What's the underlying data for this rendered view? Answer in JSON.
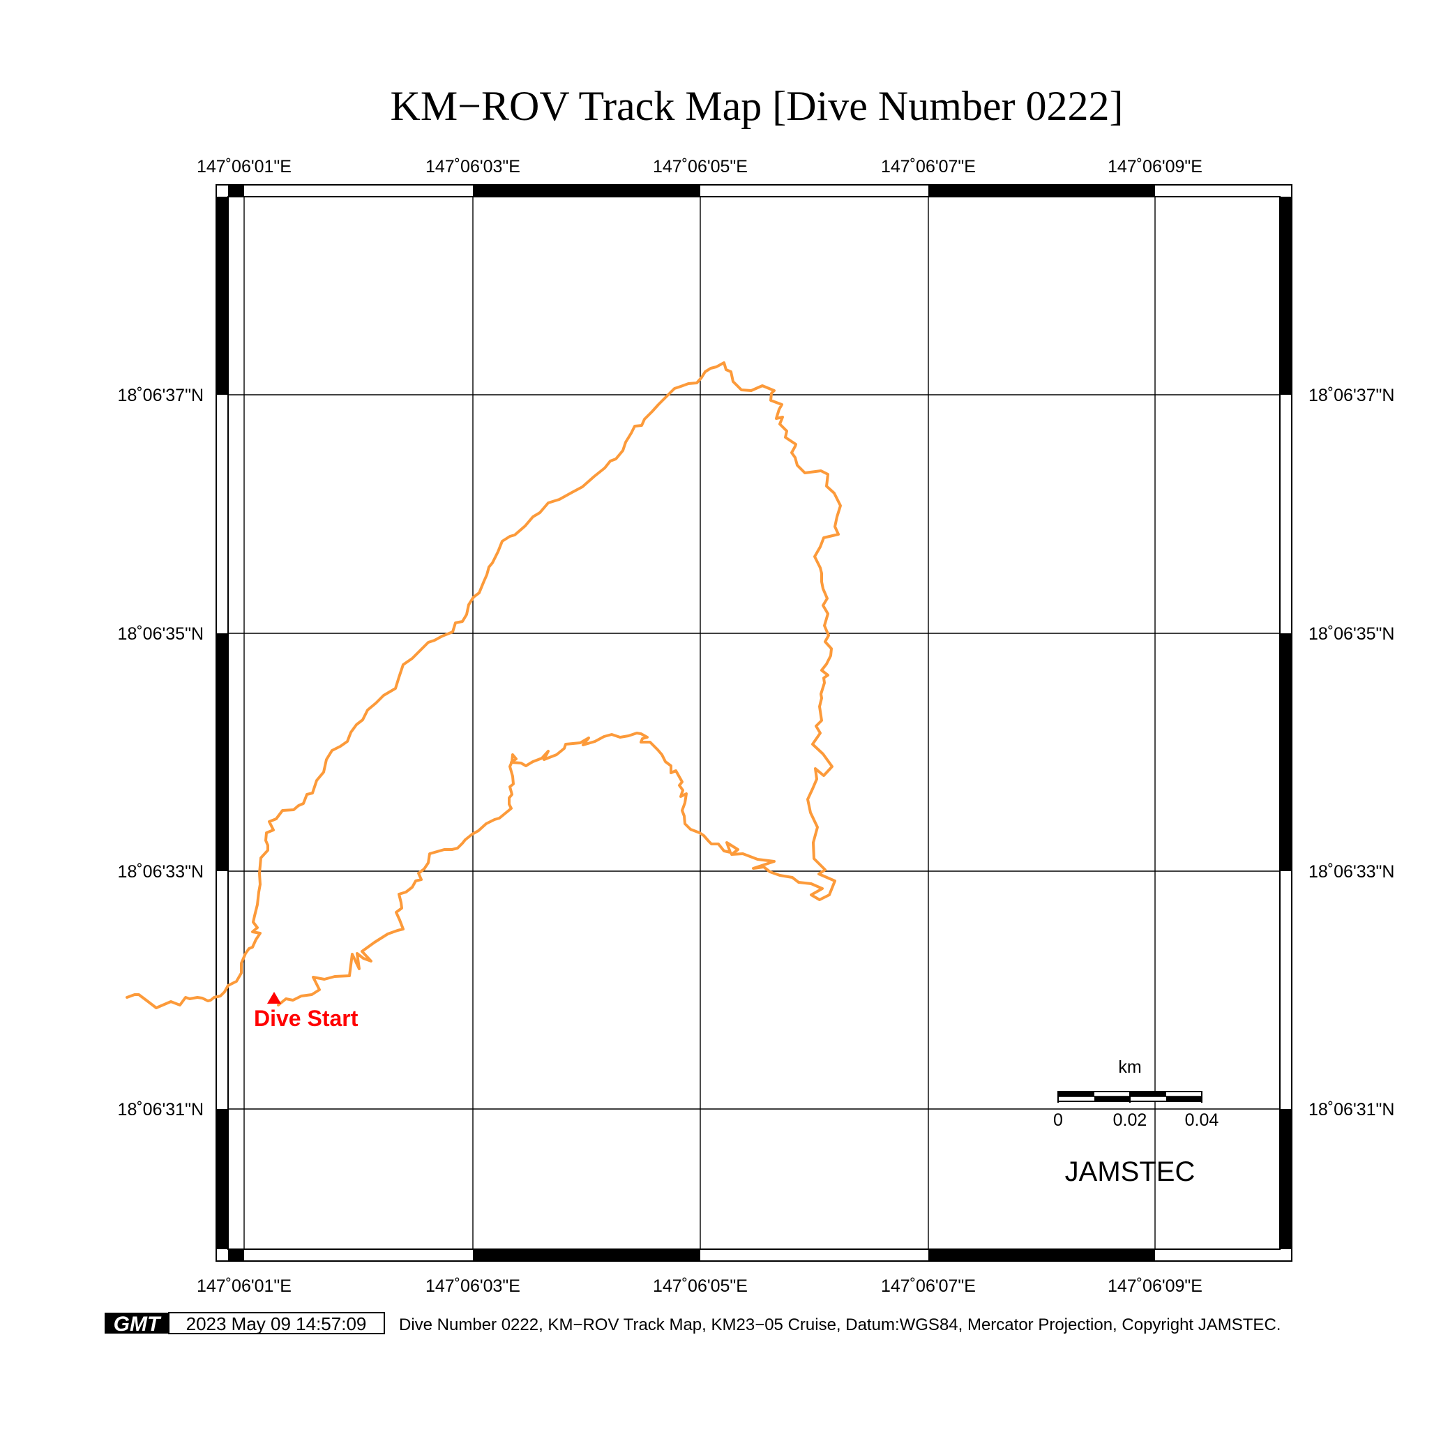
{
  "title": "KM−ROV Track Map [Dive Number 0222]",
  "axes": {
    "x_ticks": [
      "147˚06'01\"E",
      "147˚06'03\"E",
      "147˚06'05\"E",
      "147˚06'07\"E",
      "147˚06'09\"E"
    ],
    "y_ticks": [
      "18˚06'37\"N",
      "18˚06'35\"N",
      "18˚06'33\"N",
      "18˚06'31\"N"
    ]
  },
  "track": {
    "color": "#fc9a3a",
    "start_label": "Dive Start",
    "start_color": "#ff0000"
  },
  "scale_bar": {
    "unit": "km",
    "labels": [
      "0",
      "0.02",
      "0.04"
    ]
  },
  "org_label": "JAMSTEC",
  "footer": {
    "logo_text": "GMT",
    "timestamp": "2023 May 09 14:57:09",
    "caption": "Dive Number 0222, KM−ROV Track Map, KM23−05 Cruise, Datum:WGS84, Mercator Projection, Copyright JAMSTEC."
  }
}
